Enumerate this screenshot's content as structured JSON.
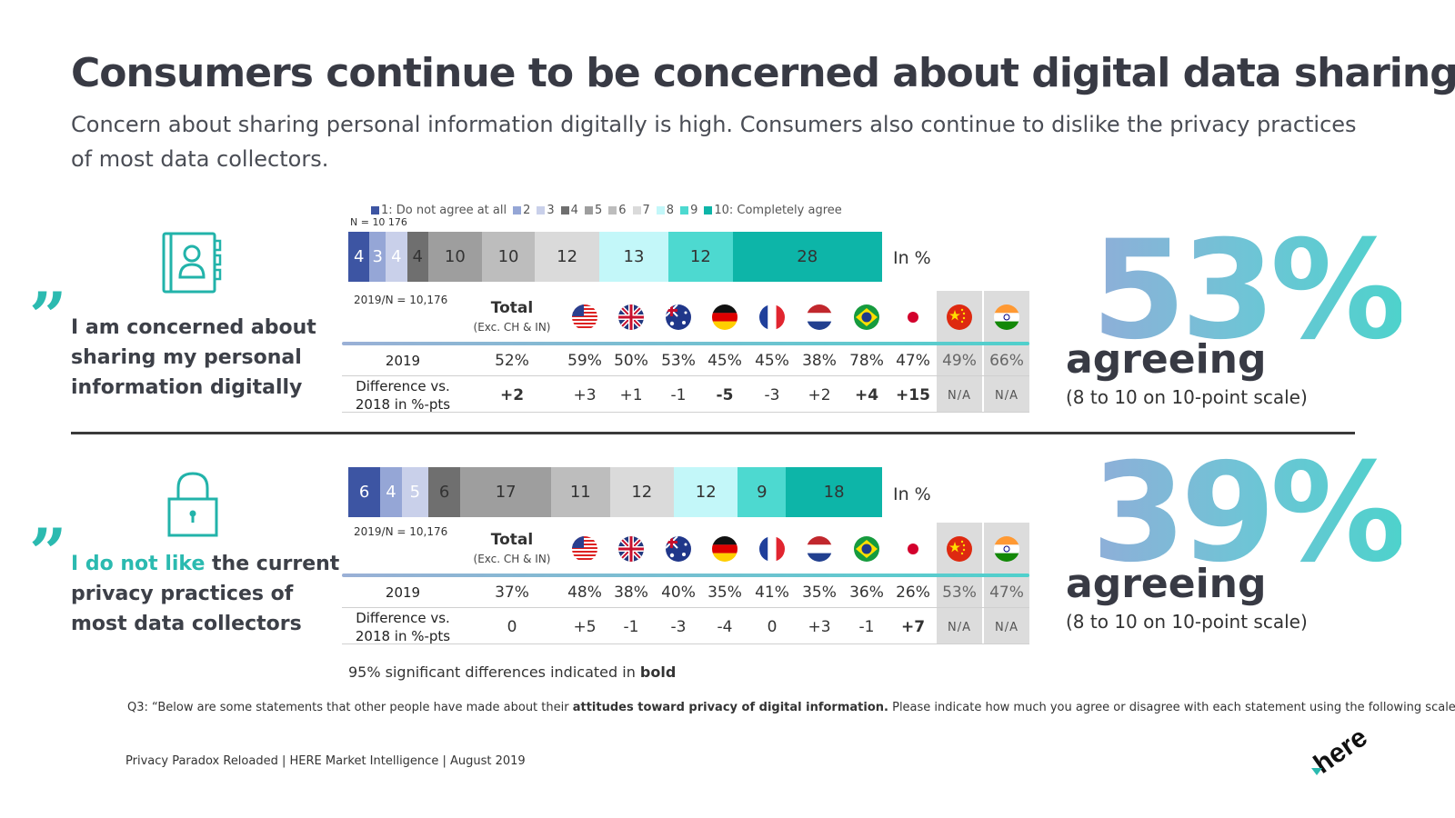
{
  "title": "Consumers continue to be concerned about digital data sharing",
  "subtitle": "Concern about sharing personal information digitally is high. Consumers also continue to dislike the privacy practices of most data collectors.",
  "legend": {
    "items": [
      {
        "label": "1: Do not agree at all",
        "color": "#3d55a3"
      },
      {
        "label": "2",
        "color": "#95a6d6"
      },
      {
        "label": "3",
        "color": "#c9d0ea"
      },
      {
        "label": "4",
        "color": "#6f6f6f"
      },
      {
        "label": "5",
        "color": "#9e9e9e"
      },
      {
        "label": "6",
        "color": "#bdbdbd"
      },
      {
        "label": "7",
        "color": "#dadada"
      },
      {
        "label": "8",
        "color": "#c3f7f9"
      },
      {
        "label": "9",
        "color": "#4dd9d0"
      },
      {
        "label": "10: Completely agree",
        "color": "#0db5a8"
      }
    ],
    "n_label": "N = 10 176"
  },
  "in_pct": "In %",
  "table_header": {
    "n2019": "2019/N = 10,176",
    "total": "Total",
    "total_sub": "(Exc. CH & IN)",
    "row1": "2019",
    "row2a": "Difference vs.",
    "row2b": "2018 in %-pts"
  },
  "flags": [
    "us-flag-icon",
    "uk-flag-icon",
    "australia-flag-icon",
    "germany-flag-icon",
    "france-flag-icon",
    "netherlands-flag-icon",
    "brazil-flag-icon",
    "japan-flag-icon",
    "china-flag-icon",
    "india-flag-icon"
  ],
  "chart_data": [
    {
      "type": "bar",
      "title": "I am concerned about sharing my personal information digitally",
      "categories": [
        "1",
        "2",
        "3",
        "4",
        "5",
        "6",
        "7",
        "8",
        "9",
        "10"
      ],
      "values": [
        4,
        3,
        4,
        4,
        10,
        10,
        12,
        13,
        12,
        28
      ],
      "unit": "In %",
      "table": {
        "values_2019": [
          "52%",
          "59%",
          "50%",
          "53%",
          "45%",
          "45%",
          "38%",
          "78%",
          "47%",
          "49%",
          "66%"
        ],
        "difference": [
          "+2",
          "+3",
          "+1",
          "-1",
          "-5",
          "-3",
          "+2",
          "+4",
          "+15",
          "N/A",
          "N/A"
        ],
        "bold_difference": [
          true,
          false,
          false,
          false,
          true,
          false,
          false,
          true,
          true,
          false,
          false
        ]
      }
    },
    {
      "type": "bar",
      "title": "I do not like the current privacy practices of most data collectors",
      "categories": [
        "1",
        "2",
        "3",
        "4",
        "5",
        "6",
        "7",
        "8",
        "9",
        "10"
      ],
      "values": [
        6,
        4,
        5,
        6,
        17,
        11,
        12,
        12,
        9,
        18
      ],
      "unit": "In %",
      "table": {
        "values_2019": [
          "37%",
          "48%",
          "38%",
          "40%",
          "35%",
          "41%",
          "35%",
          "36%",
          "26%",
          "53%",
          "47%"
        ],
        "difference": [
          "0",
          "+5",
          "-1",
          "-3",
          "-4",
          "0",
          "+3",
          "-1",
          "+7",
          "N/A",
          "N/A"
        ],
        "bold_difference": [
          false,
          false,
          false,
          false,
          false,
          false,
          false,
          false,
          true,
          false,
          false
        ]
      }
    }
  ],
  "statement1": {
    "line": "I am concerned about sharing my personal information digitally"
  },
  "statement2": {
    "highlight": "I do not like",
    "rest": " the current privacy practices of most data collectors"
  },
  "big1": {
    "number": "53%",
    "label": "agreeing",
    "scale": "(8 to 10 on 10-point scale)"
  },
  "big2": {
    "number": "39%",
    "label": "agreeing",
    "scale": "(8 to 10 on 10-point scale)"
  },
  "significance": {
    "prefix": "95% significant differences indicated in ",
    "bold": "bold"
  },
  "q3": {
    "prefix": "Q3: “Below are some statements that other people have made about their ",
    "bold": "attitudes toward privacy of digital information.",
    "suffix": " Please indicate how much you agree or disagree with each statement using the following scale.“"
  },
  "footer": "Privacy Paradox Reloaded | HERE Market Intelligence | August 2019",
  "logo": "here"
}
